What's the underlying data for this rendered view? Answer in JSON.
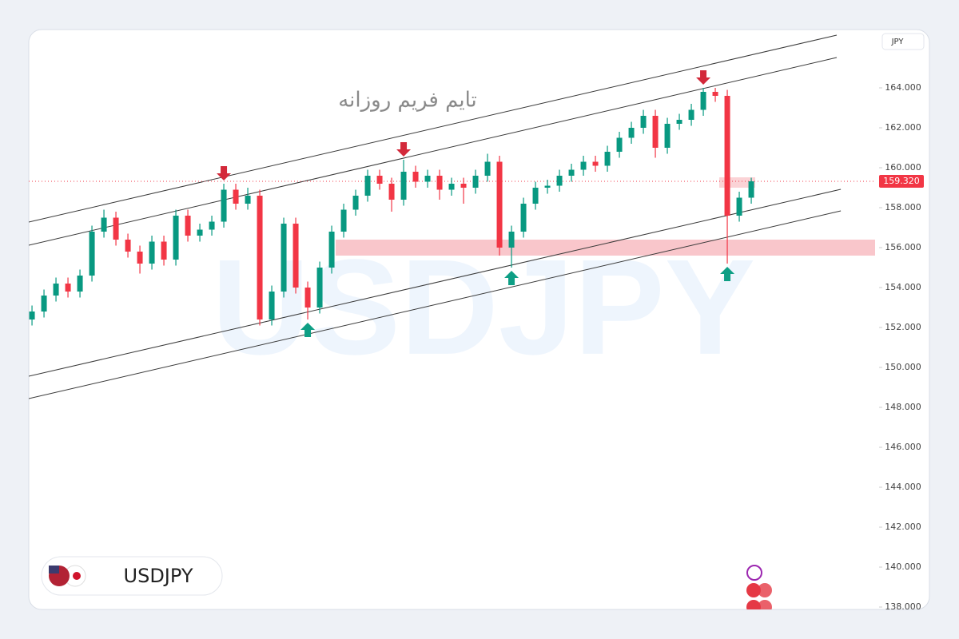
{
  "chart_data": {
    "type": "candlestick",
    "title": "تایم فریم روزانه",
    "symbol": "USDJPY",
    "watermark": "USDJPY",
    "currency": "JPY",
    "up_color": "#089981",
    "down_color": "#f23645",
    "open": [
      152.4,
      152.8,
      153.6,
      154.2,
      153.8,
      154.6,
      156.8,
      157.5,
      156.4,
      155.8,
      155.2,
      156.3,
      155.4,
      157.6,
      156.6,
      156.9,
      157.3,
      158.9,
      158.2,
      158.6,
      152.4,
      153.8,
      157.2,
      154.0,
      153.0,
      155.0,
      156.8,
      157.9,
      158.6,
      159.6,
      159.2,
      158.4,
      159.8,
      159.3,
      159.6,
      158.9,
      159.2,
      159.0,
      159.6,
      160.3,
      156.0,
      156.8,
      158.2,
      159.0,
      159.1,
      159.6,
      159.9,
      160.3,
      160.1,
      160.8,
      161.5,
      162.0,
      162.6,
      161.0,
      162.2,
      162.4,
      162.9,
      163.8,
      163.6,
      157.6,
      158.5
    ],
    "high": [
      153.1,
      153.9,
      154.5,
      154.5,
      154.9,
      157.1,
      157.9,
      157.8,
      156.7,
      156.1,
      156.6,
      156.6,
      157.9,
      157.9,
      157.2,
      157.6,
      159.2,
      159.2,
      159.0,
      158.9,
      154.1,
      157.5,
      157.5,
      154.3,
      155.3,
      157.1,
      158.2,
      158.9,
      159.9,
      159.9,
      159.5,
      160.4,
      160.1,
      159.9,
      159.9,
      159.5,
      159.5,
      159.9,
      160.7,
      160.6,
      157.1,
      158.5,
      159.3,
      159.4,
      159.9,
      160.2,
      160.6,
      160.6,
      161.1,
      161.8,
      162.3,
      162.9,
      162.9,
      162.5,
      162.7,
      163.2,
      164.0,
      164.0,
      163.9,
      158.8,
      159.5
    ],
    "low": [
      152.1,
      152.5,
      153.3,
      153.5,
      153.5,
      154.3,
      156.5,
      156.1,
      155.5,
      154.7,
      154.9,
      155.1,
      155.1,
      156.3,
      156.3,
      156.6,
      157.0,
      157.9,
      157.9,
      152.1,
      152.1,
      153.5,
      153.7,
      152.4,
      152.7,
      154.7,
      156.5,
      157.6,
      158.3,
      158.9,
      157.8,
      158.1,
      159.0,
      159.0,
      158.4,
      158.6,
      158.2,
      158.7,
      159.3,
      155.6,
      155.0,
      156.5,
      157.9,
      158.7,
      158.8,
      159.3,
      159.6,
      159.8,
      159.8,
      160.5,
      161.2,
      161.7,
      160.5,
      160.7,
      161.9,
      162.1,
      162.6,
      163.3,
      155.2,
      157.3,
      158.2
    ],
    "close": [
      152.8,
      153.6,
      154.2,
      153.8,
      154.6,
      156.8,
      157.5,
      156.4,
      155.8,
      155.2,
      156.3,
      155.4,
      157.6,
      156.6,
      156.9,
      157.3,
      158.9,
      158.2,
      158.6,
      152.4,
      153.8,
      157.2,
      154.0,
      153.0,
      155.0,
      156.8,
      157.9,
      158.6,
      159.6,
      159.2,
      158.4,
      159.8,
      159.3,
      159.6,
      158.9,
      159.2,
      159.0,
      159.6,
      160.3,
      156.0,
      156.8,
      158.2,
      159.0,
      159.1,
      159.6,
      159.9,
      160.3,
      160.1,
      160.8,
      161.5,
      162.0,
      162.6,
      161.0,
      162.2,
      162.4,
      162.9,
      163.8,
      163.6,
      157.6,
      158.5,
      159.32
    ],
    "last_price": 159.32,
    "last_price_label": "159.320",
    "xlim": [
      -0.27,
      70.33
    ],
    "ylim": [
      137.88,
      166.92
    ],
    "yticks": [
      {
        "value": 138,
        "label": "138.000"
      },
      {
        "value": 140,
        "label": "140.000"
      },
      {
        "value": 142,
        "label": "142.000"
      },
      {
        "value": 144,
        "label": "144.000"
      },
      {
        "value": 146,
        "label": "146.000"
      },
      {
        "value": 148,
        "label": "148.000"
      },
      {
        "value": 150,
        "label": "150.000"
      },
      {
        "value": 152,
        "label": "152.000"
      },
      {
        "value": 154,
        "label": "154.000"
      },
      {
        "value": 156,
        "label": "156.000"
      },
      {
        "value": 158,
        "label": "158.000"
      },
      {
        "value": 160,
        "label": "160.000"
      },
      {
        "value": 162,
        "label": "162.000"
      },
      {
        "value": 164,
        "label": "164.000"
      }
    ],
    "trendlines": [
      {
        "x": [
          -0.27,
          67.13
        ],
        "y": [
          157.28,
          166.64
        ]
      },
      {
        "x": [
          -0.27,
          67.13
        ],
        "y": [
          156.12,
          165.52
        ]
      },
      {
        "x": [
          -0.27,
          67.47
        ],
        "y": [
          149.56,
          158.92
        ]
      },
      {
        "x": [
          -0.27,
          67.47
        ],
        "y": [
          148.44,
          157.84
        ]
      }
    ],
    "trendline_color": "#3a3a3a",
    "zones": [
      {
        "x": [
          25.33,
          70.33
        ],
        "y": [
          155.6,
          156.4
        ],
        "color": "#f9c6cb"
      },
      {
        "x": [
          57.33,
          60.33
        ],
        "y": [
          159.0,
          159.52
        ],
        "color": "#fbd3d6"
      }
    ],
    "markers": [
      {
        "index": 16,
        "type": "down",
        "color": "#d3293a"
      },
      {
        "index": 31,
        "type": "down",
        "color": "#d3293a"
      },
      {
        "index": 56,
        "type": "down",
        "color": "#d3293a"
      },
      {
        "index": 23,
        "type": "up",
        "color": "#0e9f85"
      },
      {
        "index": 40,
        "type": "up",
        "color": "#0e9f85"
      },
      {
        "index": 58,
        "type": "up",
        "color": "#0e9f85"
      }
    ]
  }
}
